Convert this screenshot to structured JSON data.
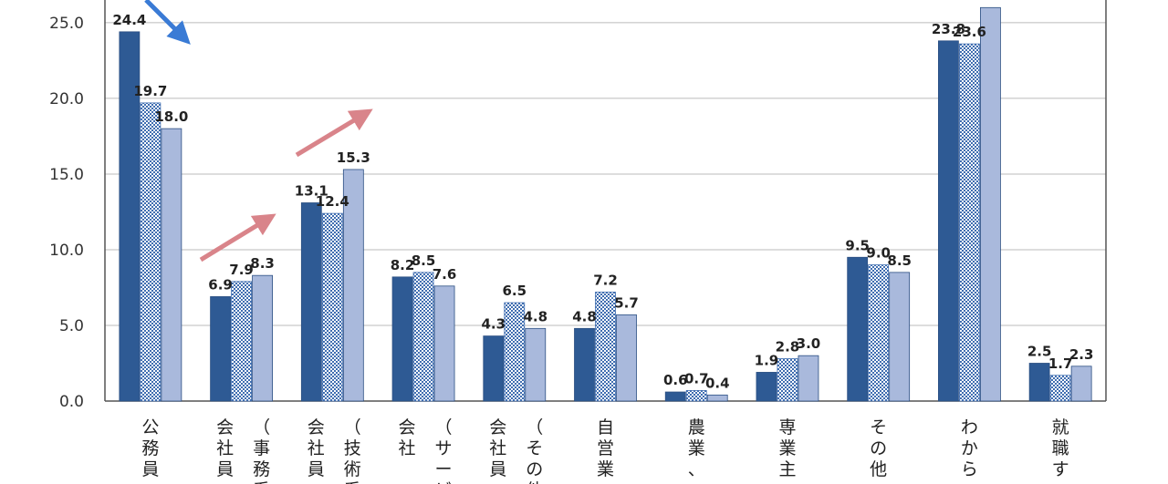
{
  "chart_data": {
    "type": "bar",
    "ylim": [
      0,
      26.5
    ],
    "yticks": [
      "0.0",
      "5.0",
      "10.0",
      "15.0",
      "20.0",
      "25.0"
    ],
    "grid": true,
    "categories": [
      [
        "公務員"
      ],
      [
        "（事務系",
        "会社員"
      ],
      [
        "（技術系",
        "会社員"
      ],
      [
        "（サービ",
        "会社"
      ],
      [
        "（その他",
        "会社員"
      ],
      [
        "自営業"
      ],
      [
        "農業、"
      ],
      [
        "専業主"
      ],
      [
        "その他"
      ],
      [
        "わから"
      ],
      [
        "就職す"
      ]
    ],
    "series": [
      {
        "values": [
          24.4,
          6.9,
          13.1,
          8.2,
          4.3,
          4.8,
          0.6,
          1.9,
          9.5,
          23.8,
          2.5
        ],
        "labels": [
          "24.4",
          "6.9",
          "13.1",
          "8.2",
          "4.3",
          "4.8",
          "0.6",
          "1.9",
          "9.5",
          "23.8",
          "2.5"
        ],
        "color": "#2e5a94",
        "pattern": "solid"
      },
      {
        "values": [
          19.7,
          7.9,
          12.4,
          8.5,
          6.5,
          7.2,
          0.7,
          2.8,
          9.0,
          23.6,
          1.7
        ],
        "labels": [
          "19.7",
          "7.9",
          "12.4",
          "8.5",
          "6.5",
          "7.2",
          "0.7",
          "2.8",
          "9.0",
          "23.6",
          "1.7"
        ],
        "color": "#3f6db0",
        "pattern": "checker"
      },
      {
        "values": [
          18.0,
          8.3,
          15.3,
          7.6,
          4.8,
          5.7,
          0.4,
          3.0,
          8.5,
          26.0,
          2.3
        ],
        "labels": [
          "18.0",
          "8.3",
          "15.3",
          "7.6",
          "4.8",
          "5.7",
          "0.4",
          "3.0",
          "8.5",
          "",
          "2.3"
        ],
        "color": "#a9b9dc",
        "pattern": "solid"
      }
    ],
    "annotations": [
      {
        "type": "arrow",
        "direction": "down",
        "color": "#3a7bd5"
      },
      {
        "type": "arrow",
        "direction": "up",
        "color": "#d9848a"
      },
      {
        "type": "arrow",
        "direction": "up",
        "color": "#d9848a"
      }
    ]
  }
}
